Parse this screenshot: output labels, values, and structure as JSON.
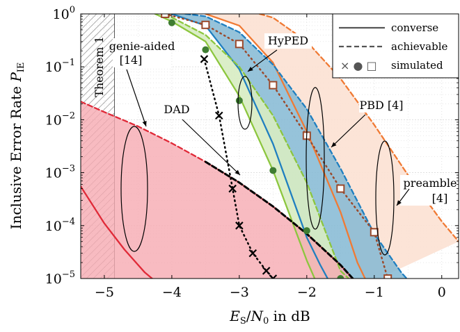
{
  "chart_data": {
    "type": "line",
    "xlabel": "E_S/N_0 in dB",
    "ylabel": "Inclusive Error Rate P_IE",
    "xlim": [
      -5.35,
      0.25
    ],
    "ylim_log10": [
      -5,
      0
    ],
    "y_scale": "log",
    "grid": true,
    "legend_position": "top-right",
    "x_ticks": [
      -5,
      -4,
      -3,
      -2,
      -1,
      0
    ],
    "x_tick_labels": [
      "−5",
      "−4",
      "−3",
      "−2",
      "−1",
      "0"
    ],
    "y_ticks_log10": [
      0,
      -1,
      -2,
      -3,
      -4,
      -5
    ],
    "legend": [
      {
        "label": "converse",
        "style": "solid"
      },
      {
        "label": "achievable",
        "style": "dashed"
      },
      {
        "label": "simulated",
        "style": "markers"
      }
    ],
    "legend_symbols": "× ● □",
    "theorem_region": {
      "label": "Theorem 1",
      "x_max": -4.85
    },
    "annotations": {
      "genie_aided": [
        "genie-aided",
        "[14]"
      ],
      "dad": "DAD",
      "hyped": "HyPED",
      "pbd": "PBD [4]",
      "preamble": [
        "preamble",
        "[4]"
      ]
    },
    "colors": {
      "red": "#e02a38",
      "red_fill": "#f6aab2",
      "orange": "#f07a34",
      "orange_fill": "#fce1d3",
      "blue": "#1f7fc0",
      "blue_fill": "#84b9d4",
      "green": "#8cc63e",
      "green_fill": "#d7ecc2",
      "black": "#000000",
      "marker_green": "#3f7d32",
      "marker_square": "#9b4a2c"
    },
    "series": [
      {
        "key": "genie_converse",
        "color": "red",
        "dash": "solid",
        "x": [
          -5.35,
          -5.0,
          -4.7,
          -4.4,
          -4.2
        ],
        "y": [
          0.00055,
          0.00011,
          3.5e-05,
          1.3e-05,
          8e-06
        ]
      },
      {
        "key": "genie_achievable",
        "color": "red",
        "dash": "dashed",
        "x": [
          -5.35,
          -5.0,
          -4.5,
          -4.0,
          -3.5,
          -3.0,
          -2.5,
          -2.0,
          -1.5,
          -1.25
        ],
        "y": [
          0.022,
          0.014,
          0.0075,
          0.0036,
          0.0016,
          0.00065,
          0.00023,
          7e-05,
          1.8e-05,
          8e-06
        ]
      },
      {
        "key": "dad_achievable",
        "color": "black",
        "dash": "dashed",
        "x": [
          -3.5,
          -3.0,
          -2.5,
          -2.0,
          -1.5,
          -1.25
        ],
        "y": [
          0.0016,
          0.00065,
          0.00023,
          7e-05,
          1.8e-05,
          8e-06
        ]
      },
      {
        "key": "dad_simulated",
        "color": "black",
        "dash": "dotted",
        "marker": "cross",
        "x": [
          -3.52,
          -3.3,
          -3.1,
          -3.0,
          -2.8,
          -2.6,
          -2.5
        ],
        "y": [
          0.14,
          0.012,
          0.0005,
          0.0001,
          3e-05,
          1.4e-05,
          1e-05
        ]
      },
      {
        "key": "hyped_converse",
        "color": "green",
        "dash": "solid",
        "x": [
          -4.25,
          -4.0,
          -3.5,
          -3.0,
          -2.5,
          -2.0,
          -1.85
        ],
        "y": [
          1.0,
          0.72,
          0.3,
          0.028,
          0.0011,
          2.2e-05,
          8e-06
        ]
      },
      {
        "key": "hyped_achievable",
        "color": "green",
        "dash": "dashed",
        "x": [
          -4.1,
          -3.5,
          -3.0,
          -2.5,
          -2.0,
          -1.5,
          -1.3
        ],
        "y": [
          1.0,
          0.4,
          0.1,
          0.012,
          0.00065,
          1.4e-05,
          8e-06
        ]
      },
      {
        "key": "hyped_simulated",
        "color": "green",
        "dash": "none",
        "marker": "circle",
        "x": [
          -4.0,
          -3.5,
          -3.0,
          -2.5,
          -2.0,
          -1.5
        ],
        "y": [
          0.68,
          0.21,
          0.023,
          0.0011,
          8e-05,
          1e-05
        ]
      },
      {
        "key": "pbd_converse",
        "color": "blue",
        "dash": "solid",
        "x": [
          -4.0,
          -3.5,
          -3.0,
          -2.5,
          -2.0,
          -1.8,
          -1.65
        ],
        "y": [
          1.0,
          0.6,
          0.09,
          0.0035,
          6e-05,
          1.8e-05,
          8e-06
        ]
      },
      {
        "key": "pbd_achievable",
        "color": "blue",
        "dash": "dashed",
        "x": [
          -3.8,
          -3.5,
          -3.0,
          -2.5,
          -2.0,
          -1.5,
          -1.0,
          -0.6,
          -0.45
        ],
        "y": [
          1.0,
          0.9,
          0.45,
          0.11,
          0.016,
          0.0012,
          7e-05,
          1.3e-05,
          8e-06
        ]
      },
      {
        "key": "preamble_converse",
        "color": "orange",
        "dash": "solid",
        "x": [
          -3.5,
          -3.0,
          -2.5,
          -2.0,
          -1.5,
          -1.25,
          -1.1
        ],
        "y": [
          1.0,
          0.6,
          0.12,
          0.006,
          0.00018,
          2e-05,
          8e-06
        ]
      },
      {
        "key": "preamble_achievable",
        "color": "orange",
        "dash": "dashed",
        "x": [
          -2.7,
          -2.5,
          -2.0,
          -1.5,
          -1.0,
          -0.5,
          0.0,
          0.25
        ],
        "y": [
          1.0,
          0.85,
          0.3,
          0.06,
          0.008,
          0.0009,
          0.00012,
          5e-05
        ]
      },
      {
        "key": "preamble_simulated",
        "color": "marker_square",
        "dash": "dotted",
        "marker": "square",
        "x": [
          -4.1,
          -3.5,
          -3.0,
          -2.5,
          -2.0,
          -1.5,
          -1.0,
          -0.8
        ],
        "y": [
          1.0,
          0.62,
          0.27,
          0.045,
          0.005,
          0.0005,
          7.5e-05,
          1e-05
        ]
      }
    ]
  }
}
